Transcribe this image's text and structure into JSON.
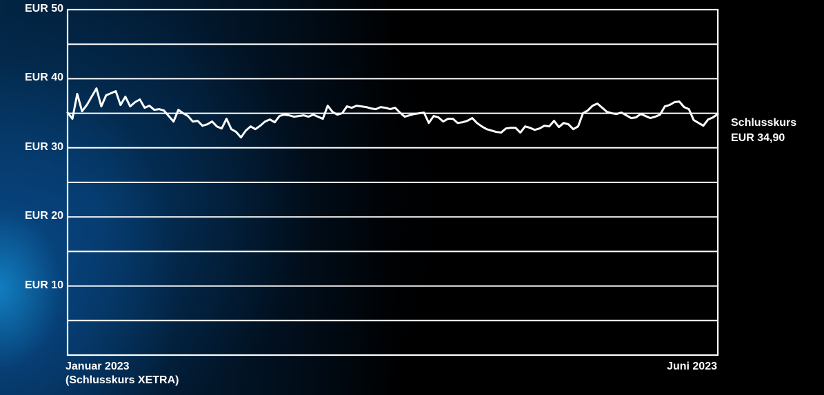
{
  "colors": {
    "line": "#ffffff",
    "grid": "#ffffff",
    "background_glow": "#148cd2",
    "background": "#000000"
  },
  "chart_data": {
    "type": "line",
    "title": "",
    "ylim": [
      0,
      50
    ],
    "grid": true,
    "y_ticks": [
      {
        "value": 50,
        "label": "EUR 50"
      },
      {
        "value": 40,
        "label": "EUR 40"
      },
      {
        "value": 30,
        "label": "EUR 30"
      },
      {
        "value": 20,
        "label": "EUR 20"
      },
      {
        "value": 10,
        "label": "EUR 10"
      }
    ],
    "x_start_label": "Januar 2023",
    "x_start_sublabel": "(Schlusskurs XETRA)",
    "x_end_label": "Juni 2023",
    "last_value_label": [
      "Schlusskurs",
      "EUR 34,90"
    ],
    "series": [
      {
        "values": [
          35.1,
          34.2,
          37.8,
          35.3,
          36.2,
          37.4,
          38.6,
          36.0,
          37.6,
          37.9,
          38.2,
          36.2,
          37.4,
          36.0,
          36.6,
          37.0,
          35.8,
          36.1,
          35.5,
          35.6,
          35.4,
          34.6,
          33.8,
          35.5,
          35.0,
          34.6,
          33.8,
          33.9,
          33.2,
          33.4,
          33.8,
          33.1,
          32.8,
          34.2,
          32.7,
          32.3,
          31.5,
          32.5,
          33.1,
          32.7,
          33.2,
          33.8,
          34.1,
          33.7,
          34.6,
          34.8,
          34.7,
          34.5,
          34.6,
          34.7,
          34.5,
          34.8,
          34.5,
          34.2,
          36.1,
          35.2,
          34.8,
          35.0,
          36.0,
          35.8,
          36.1,
          36.0,
          35.9,
          35.7,
          35.6,
          35.9,
          35.8,
          35.6,
          35.8,
          35.1,
          34.5,
          34.7,
          34.9,
          35.0,
          35.1,
          33.6,
          34.6,
          34.4,
          33.8,
          34.2,
          34.2,
          33.6,
          33.7,
          33.9,
          34.3,
          33.6,
          33.1,
          32.7,
          32.5,
          32.3,
          32.2,
          32.8,
          32.9,
          32.9,
          32.2,
          33.1,
          32.9,
          32.6,
          32.8,
          33.2,
          33.1,
          33.9,
          33.0,
          33.6,
          33.4,
          32.7,
          33.1,
          35.0,
          35.4,
          36.1,
          36.4,
          35.8,
          35.2,
          35.0,
          34.9,
          35.1,
          34.7,
          34.3,
          34.4,
          34.9,
          34.6,
          34.3,
          34.5,
          34.8,
          36.0,
          36.2,
          36.6,
          36.7,
          35.9,
          35.6,
          34.0,
          33.6,
          33.2,
          34.1,
          34.4,
          34.9
        ]
      }
    ]
  }
}
